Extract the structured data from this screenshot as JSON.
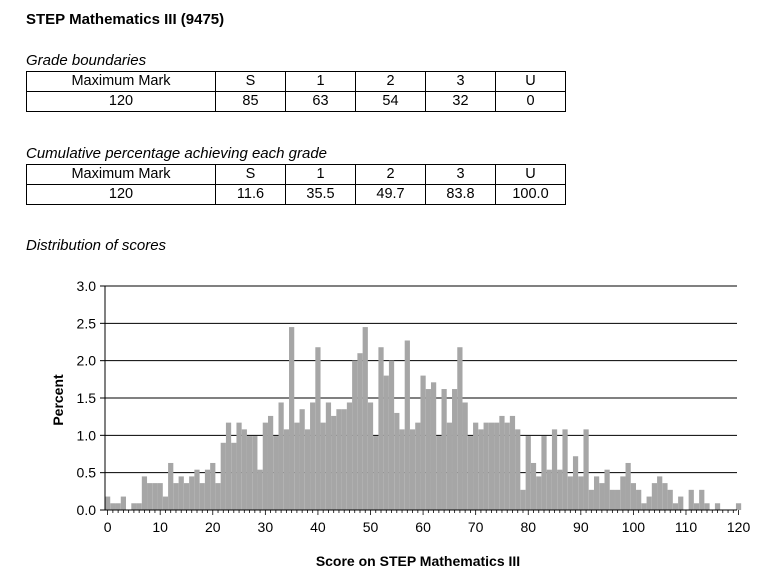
{
  "page_title": "STEP Mathematics III (9475)",
  "grade_boundaries": {
    "label": "Grade boundaries",
    "headers": [
      "Maximum Mark",
      "S",
      "1",
      "2",
      "3",
      "U"
    ],
    "values": [
      "120",
      "85",
      "63",
      "54",
      "32",
      "0"
    ]
  },
  "cumulative": {
    "label": "Cumulative percentage achieving each grade",
    "headers": [
      "Maximum Mark",
      "S",
      "1",
      "2",
      "3",
      "U"
    ],
    "values": [
      "120",
      "11.6",
      "35.5",
      "49.7",
      "83.8",
      "100.0"
    ]
  },
  "distribution_label": "Distribution of scores",
  "colors": {
    "bar": "#a6a6a6",
    "grid": "#000000",
    "axis": "#000000"
  },
  "chart_data": {
    "type": "bar",
    "title": "Distribution of scores",
    "xlabel": "Score on STEP Mathematics III",
    "ylabel": "Percent",
    "xlim": [
      0,
      120
    ],
    "ylim": [
      0,
      3.0
    ],
    "xticks": [
      0,
      10,
      20,
      30,
      40,
      50,
      60,
      70,
      80,
      90,
      100,
      110,
      120
    ],
    "xtick_labels": [
      "0",
      "10",
      "20",
      "30",
      "40",
      "50",
      "60",
      "70",
      "80",
      "90",
      "100",
      "110",
      "120"
    ],
    "yticks": [
      0,
      0.5,
      1.0,
      1.5,
      2.0,
      2.5,
      3.0
    ],
    "ytick_labels": [
      "0.0",
      "0.5",
      "1.0",
      "1.5",
      "2.0",
      "2.5",
      "3.0"
    ],
    "grid": "horizontal",
    "x": [
      0,
      1,
      2,
      3,
      4,
      5,
      6,
      7,
      8,
      9,
      10,
      11,
      12,
      13,
      14,
      15,
      16,
      17,
      18,
      19,
      20,
      21,
      22,
      23,
      24,
      25,
      26,
      27,
      28,
      29,
      30,
      31,
      32,
      33,
      34,
      35,
      36,
      37,
      38,
      39,
      40,
      41,
      42,
      43,
      44,
      45,
      46,
      47,
      48,
      49,
      50,
      51,
      52,
      53,
      54,
      55,
      56,
      57,
      58,
      59,
      60,
      61,
      62,
      63,
      64,
      65,
      66,
      67,
      68,
      69,
      70,
      71,
      72,
      73,
      74,
      75,
      76,
      77,
      78,
      79,
      80,
      81,
      82,
      83,
      84,
      85,
      86,
      87,
      88,
      89,
      90,
      91,
      92,
      93,
      94,
      95,
      96,
      97,
      98,
      99,
      100,
      101,
      102,
      103,
      104,
      105,
      106,
      107,
      108,
      109,
      110,
      111,
      112,
      113,
      114,
      115,
      116,
      117,
      118,
      119,
      120
    ],
    "values": [
      0.18,
      0.09,
      0.09,
      0.18,
      0.0,
      0.09,
      0.09,
      0.45,
      0.36,
      0.36,
      0.36,
      0.18,
      0.63,
      0.36,
      0.45,
      0.36,
      0.45,
      0.54,
      0.36,
      0.54,
      0.63,
      0.36,
      0.9,
      1.17,
      0.9,
      1.17,
      1.08,
      0.99,
      0.99,
      0.54,
      1.17,
      1.26,
      0.99,
      1.44,
      1.08,
      2.45,
      1.17,
      1.35,
      1.08,
      1.44,
      2.18,
      1.17,
      1.44,
      1.26,
      1.35,
      1.35,
      1.44,
      2.0,
      2.1,
      2.45,
      1.44,
      0.99,
      2.18,
      1.8,
      2.0,
      1.3,
      1.08,
      2.27,
      1.08,
      1.17,
      1.8,
      1.62,
      1.71,
      0.99,
      1.62,
      1.17,
      1.62,
      2.18,
      1.44,
      0.99,
      1.17,
      1.08,
      1.17,
      1.17,
      1.17,
      1.26,
      1.17,
      1.26,
      1.08,
      0.27,
      0.99,
      0.63,
      0.45,
      0.99,
      0.54,
      1.08,
      0.54,
      1.08,
      0.45,
      0.72,
      0.45,
      1.08,
      0.27,
      0.45,
      0.36,
      0.54,
      0.27,
      0.27,
      0.45,
      0.63,
      0.36,
      0.27,
      0.09,
      0.18,
      0.36,
      0.45,
      0.36,
      0.27,
      0.09,
      0.18,
      0.0,
      0.27,
      0.09,
      0.27,
      0.09,
      0.0,
      0.09,
      0.0,
      0.0,
      0.0,
      0.09
    ]
  }
}
